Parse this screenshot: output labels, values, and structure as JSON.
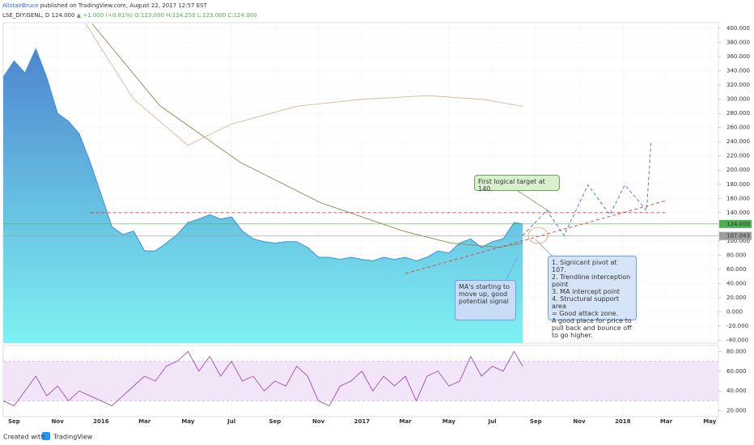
{
  "header": {
    "author": "AlistairBruce",
    "published": "published on TradingView.com, August 22, 2017 12:57 EST",
    "symbol": "LSE_DIY:GENL, D",
    "last": "124.000",
    "change": "▲ +1.000 (+0.81%)",
    "ohlc": "O:123.000 H:124.250 L:123.000 C:124.000"
  },
  "notes": {
    "target": "First logical target at 140.",
    "ma": [
      "MA's starting to",
      "move up, good",
      "potential signal"
    ],
    "list": [
      "1. Signicant pivot at 107.",
      "2. Trendline interception",
      "point",
      "3. MA intercept point",
      "4. Structural support area",
      "= Good attack zone.",
      "A good place for price to",
      "pull back and bounce off",
      "to go higher."
    ]
  },
  "footer": {
    "created": "Created with",
    "brand": "TradingView"
  },
  "chart_data": [
    {
      "type": "area",
      "color": "#3d8fd6",
      "x": [
        -0.5,
        0,
        0.5,
        1,
        1.5,
        2,
        2.5,
        3,
        3.5,
        4,
        4.5,
        5,
        5.5,
        6,
        6.5,
        7,
        7.5,
        8,
        8.5,
        9,
        9.5,
        10,
        10.5,
        11,
        11.5,
        12,
        12.5,
        13,
        13.5,
        14,
        14.5,
        15,
        15.5,
        16,
        16.5,
        17,
        17.5,
        18,
        18.5,
        19,
        19.5,
        20,
        20.5,
        21,
        21.5,
        22,
        22.5,
        23,
        23.4
      ],
      "values": [
        331,
        354,
        337,
        371,
        331,
        280,
        269,
        251,
        211,
        166,
        120,
        109,
        114,
        86,
        86,
        97,
        109,
        126,
        131,
        137,
        131,
        134,
        114,
        103,
        99,
        97,
        99,
        99,
        91,
        77,
        77,
        74,
        77,
        74,
        72,
        77,
        74,
        77,
        72,
        77,
        86,
        83,
        97,
        103,
        91,
        99,
        103,
        126,
        124
      ],
      "xlim": [
        -0.5,
        32.4
      ],
      "xticks": [
        {
          "value": 0,
          "label": "Sep"
        },
        {
          "value": 2,
          "label": "Nov"
        },
        {
          "value": 4,
          "label": "2016"
        },
        {
          "value": 6,
          "label": "Mar"
        },
        {
          "value": 8,
          "label": "May"
        },
        {
          "value": 10,
          "label": "Jul"
        },
        {
          "value": 12,
          "label": "Sep"
        },
        {
          "value": 14,
          "label": "Nov"
        },
        {
          "value": 16,
          "label": "2017"
        },
        {
          "value": 18,
          "label": "Mar"
        },
        {
          "value": 20,
          "label": "May"
        },
        {
          "value": 22,
          "label": "Jul"
        },
        {
          "value": 24,
          "label": "Sep"
        },
        {
          "value": 26,
          "label": "Nov"
        },
        {
          "value": 28,
          "label": "2018"
        },
        {
          "value": 30,
          "label": "Mar"
        },
        {
          "value": 32,
          "label": "May"
        }
      ],
      "ylim": [
        -44,
        408
      ],
      "yticks": [
        {
          "value": 400,
          "label": "400.000"
        },
        {
          "value": 380,
          "label": "380.000"
        },
        {
          "value": 360,
          "label": "360.000"
        },
        {
          "value": 340,
          "label": "340.000"
        },
        {
          "value": 320,
          "label": "320.000"
        },
        {
          "value": 300,
          "label": "300.000"
        },
        {
          "value": 280,
          "label": "280.000"
        },
        {
          "value": 260,
          "label": "260.000"
        },
        {
          "value": 240,
          "label": "240.000"
        },
        {
          "value": 220,
          "label": "220.000"
        },
        {
          "value": 200,
          "label": "200.000"
        },
        {
          "value": 180,
          "label": "180.000"
        },
        {
          "value": 160,
          "label": "160.000"
        },
        {
          "value": 140,
          "label": "140.000"
        },
        {
          "value": 100,
          "label": "100.000"
        },
        {
          "value": 80,
          "label": "80.000"
        },
        {
          "value": 60,
          "label": "60.000"
        },
        {
          "value": 40,
          "label": "40.000"
        },
        {
          "value": 20,
          "label": "20.000"
        },
        {
          "value": 0,
          "label": "0.000"
        },
        {
          "value": -20,
          "label": "-20.000"
        },
        {
          "value": -40,
          "label": "-40.000"
        }
      ],
      "price_labels": [
        {
          "value": 124,
          "label": "124.000",
          "color": "#4caf50"
        },
        {
          "value": 107.043,
          "label": "107.043",
          "color": "#9e9e9e"
        }
      ],
      "lines": [
        {
          "color": "#8a8a50",
          "dash": false,
          "points": [
            [
              3.6,
              406
            ],
            [
              6.7,
              291
            ],
            [
              10.4,
              211
            ],
            [
              14.1,
              154
            ],
            [
              17.9,
              114
            ],
            [
              20.1,
              97
            ],
            [
              22.3,
              91
            ],
            [
              23.4,
              97
            ]
          ]
        },
        {
          "color": "#d9b99b",
          "dash": false,
          "points": [
            [
              3.3,
              406
            ],
            [
              5.5,
              300
            ],
            [
              8,
              235
            ],
            [
              10,
              265
            ],
            [
              13,
              290
            ],
            [
              16,
              300
            ],
            [
              19,
              305
            ],
            [
              21.5,
              300
            ],
            [
              23.4,
              290
            ]
          ]
        },
        {
          "color": "#e53935",
          "dash": true,
          "points": [
            [
              3.5,
              140
            ],
            [
              30,
              140
            ]
          ]
        },
        {
          "color": "#e53935",
          "dash": true,
          "points": [
            [
              18,
              54
            ],
            [
              30,
              157
            ]
          ]
        },
        {
          "color": "#3f6fd8",
          "dash": true,
          "points": [
            [
              23.4,
              108
            ],
            [
              24.5,
              143
            ],
            [
              25.3,
              108
            ],
            [
              26.4,
              179
            ],
            [
              27.4,
              137
            ],
            [
              28.1,
              179
            ],
            [
              29.1,
              143
            ],
            [
              29.3,
              240
            ]
          ]
        }
      ]
    },
    {
      "type": "line",
      "color": "#9c4fb0",
      "x": [
        -0.5,
        0,
        0.5,
        1,
        1.5,
        2,
        2.5,
        3,
        3.5,
        4,
        4.5,
        5,
        5.5,
        6,
        6.5,
        7,
        7.5,
        8,
        8.5,
        9,
        9.5,
        10,
        10.5,
        11,
        11.5,
        12,
        12.5,
        13,
        13.5,
        14,
        14.5,
        15,
        15.5,
        16,
        16.5,
        17,
        17.5,
        18,
        18.5,
        19,
        19.5,
        20,
        20.5,
        21,
        21.5,
        22,
        22.5,
        23,
        23.4
      ],
      "values": [
        30,
        25,
        40,
        55,
        35,
        45,
        30,
        40,
        35,
        30,
        25,
        35,
        45,
        55,
        50,
        65,
        70,
        80,
        60,
        75,
        55,
        70,
        50,
        55,
        40,
        50,
        45,
        65,
        55,
        30,
        25,
        45,
        50,
        60,
        40,
        55,
        45,
        55,
        30,
        55,
        60,
        45,
        50,
        75,
        55,
        65,
        60,
        80,
        65
      ],
      "ylim": [
        14,
        86
      ],
      "yticks": [
        {
          "value": 80,
          "label": "80.000"
        },
        {
          "value": 60,
          "label": "60.000"
        },
        {
          "value": 40,
          "label": "40.000"
        },
        {
          "value": 20,
          "label": "20.000"
        }
      ],
      "bands": [
        70,
        30
      ],
      "band_color": "#f3e5f8"
    }
  ]
}
